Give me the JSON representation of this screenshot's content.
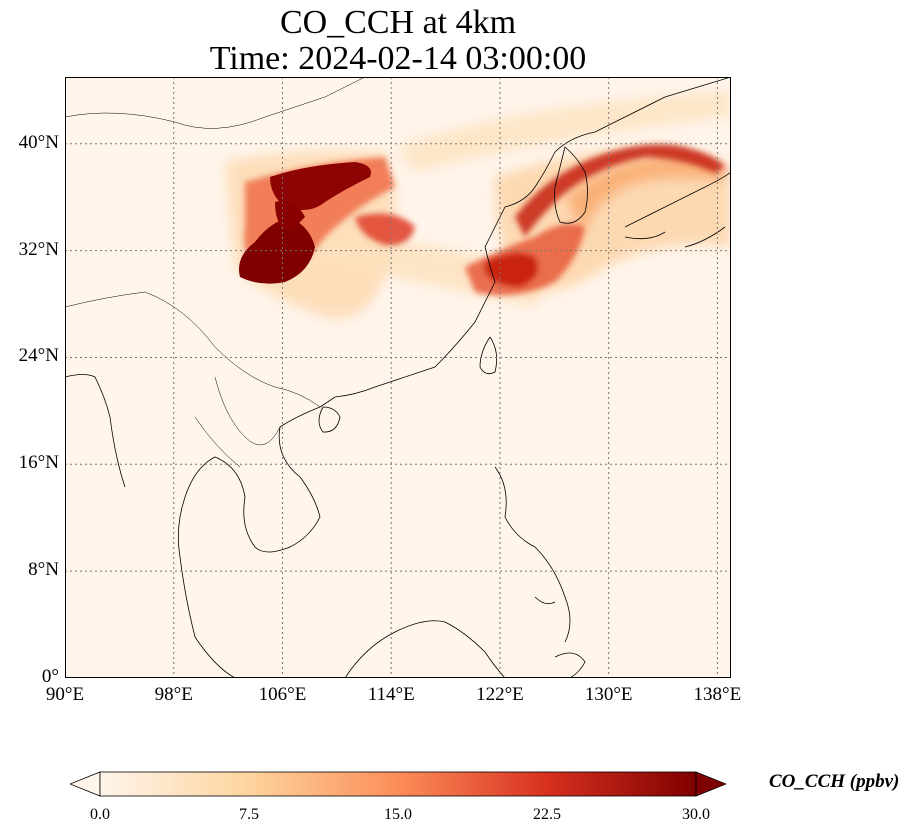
{
  "title": "CO_CCH at 4km",
  "subtitle": "Time: 2024-02-14 03:00:00",
  "map": {
    "lon_range": [
      90,
      139
    ],
    "lat_range": [
      0,
      45
    ],
    "gridlines": true,
    "lat_ticks": [
      {
        "value": 40,
        "label": "40°N"
      },
      {
        "value": 32,
        "label": "32°N"
      },
      {
        "value": 24,
        "label": "24°N"
      },
      {
        "value": 16,
        "label": "16°N"
      },
      {
        "value": 8,
        "label": "8°N"
      },
      {
        "value": 0,
        "label": "0°"
      }
    ],
    "lon_ticks": [
      {
        "value": 90,
        "label": "90°E"
      },
      {
        "value": 98,
        "label": "98°E"
      },
      {
        "value": 106,
        "label": "106°E"
      },
      {
        "value": 114,
        "label": "114°E"
      },
      {
        "value": 122,
        "label": "122°E"
      },
      {
        "value": 130,
        "label": "130°E"
      },
      {
        "value": 138,
        "label": "138°E"
      }
    ],
    "background_color": "#fff5eb",
    "coastline_color": "#000000"
  },
  "colorbar": {
    "label": "CO_CCH (ppbv)",
    "min": 0.0,
    "max": 30.0,
    "extend": "both",
    "colormap": "OrRd",
    "ticks": [
      "0.0",
      "7.5",
      "15.0",
      "22.5",
      "30.0"
    ],
    "colors": [
      "#fff5eb",
      "#fdd49e",
      "#fc8d59",
      "#d7301f",
      "#7f0000"
    ]
  }
}
